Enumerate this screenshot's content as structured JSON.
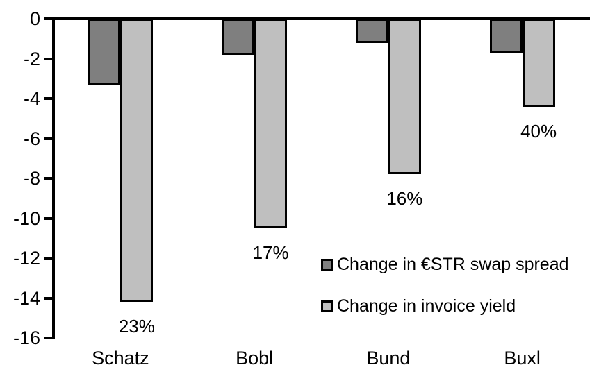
{
  "chart_data": {
    "type": "bar",
    "title": "",
    "xlabel": "",
    "ylabel": "",
    "categories": [
      "Schatz",
      "Bobl",
      "Bund",
      "Buxl"
    ],
    "series": [
      {
        "name": "Change in €STR swap spread",
        "color": "#7f7f7f",
        "values": [
          -3.3,
          -1.8,
          -1.2,
          -1.7
        ]
      },
      {
        "name": "Change in invoice yield",
        "color": "#bfbfbf",
        "values": [
          -14.2,
          -10.5,
          -7.8,
          -4.4
        ]
      }
    ],
    "bar_labels": {
      "series": "Change in invoice yield",
      "values": [
        "23%",
        "17%",
        "16%",
        "40%"
      ]
    },
    "yticks": [
      0,
      -2,
      -4,
      -6,
      -8,
      -10,
      -12,
      -14,
      -16
    ],
    "ylim": [
      0,
      -16
    ],
    "grid": false,
    "legend_position": "inside-right",
    "bar_border_color": "#000000",
    "axis_color": "#000000",
    "background_color": "#ffffff"
  }
}
